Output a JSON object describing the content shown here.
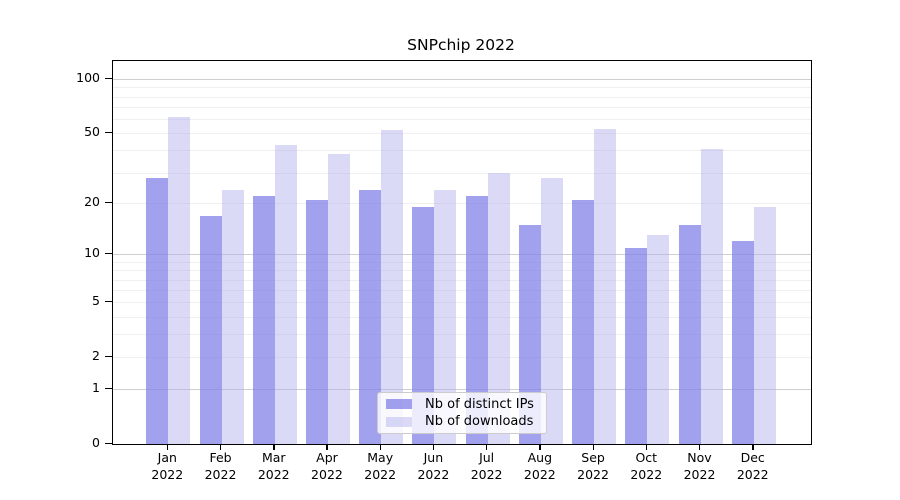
{
  "title": "SNPchip 2022",
  "chart_data": {
    "type": "bar",
    "title": "SNPchip 2022",
    "categories": [
      "Jan",
      "Feb",
      "Mar",
      "Apr",
      "May",
      "Jun",
      "Jul",
      "Aug",
      "Sep",
      "Oct",
      "Nov",
      "Dec"
    ],
    "x_tick_second_line": "2022",
    "series": [
      {
        "name": "Nb of distinct IPs",
        "color": "rgba(130,130,232,0.75)",
        "display_hex": "#a1a1ee",
        "values": [
          28,
          17,
          22,
          21,
          24,
          19,
          22,
          15,
          21,
          11,
          15,
          12
        ]
      },
      {
        "name": "Nb of downloads",
        "color": "rgba(173,173,237,0.45)",
        "display_hex": "#dadaf7",
        "values": [
          62,
          24,
          43,
          38,
          52,
          24,
          30,
          28,
          53,
          13,
          41,
          19
        ]
      }
    ],
    "y_axis": {
      "scale": "log10(value+1)",
      "tick_labels": [
        "100",
        "50",
        "20",
        "10",
        "5",
        "2",
        "1",
        "0"
      ],
      "tick_values": [
        100,
        50,
        20,
        10,
        5,
        2,
        1,
        0
      ],
      "major_gridline_values": [
        1,
        10,
        100
      ],
      "minor_gridline_values": [
        2,
        3,
        4,
        5,
        6,
        7,
        8,
        9,
        20,
        30,
        40,
        50,
        60,
        70,
        80,
        90
      ],
      "ylim": [
        0,
        127
      ]
    },
    "xlabel": "",
    "ylabel": "",
    "grid": true,
    "legend_position": "lower center",
    "colors": {
      "major_grid": "#cfcfcf",
      "minor_grid": "#efefef",
      "spine": "#000000",
      "background": "#ffffff"
    }
  }
}
